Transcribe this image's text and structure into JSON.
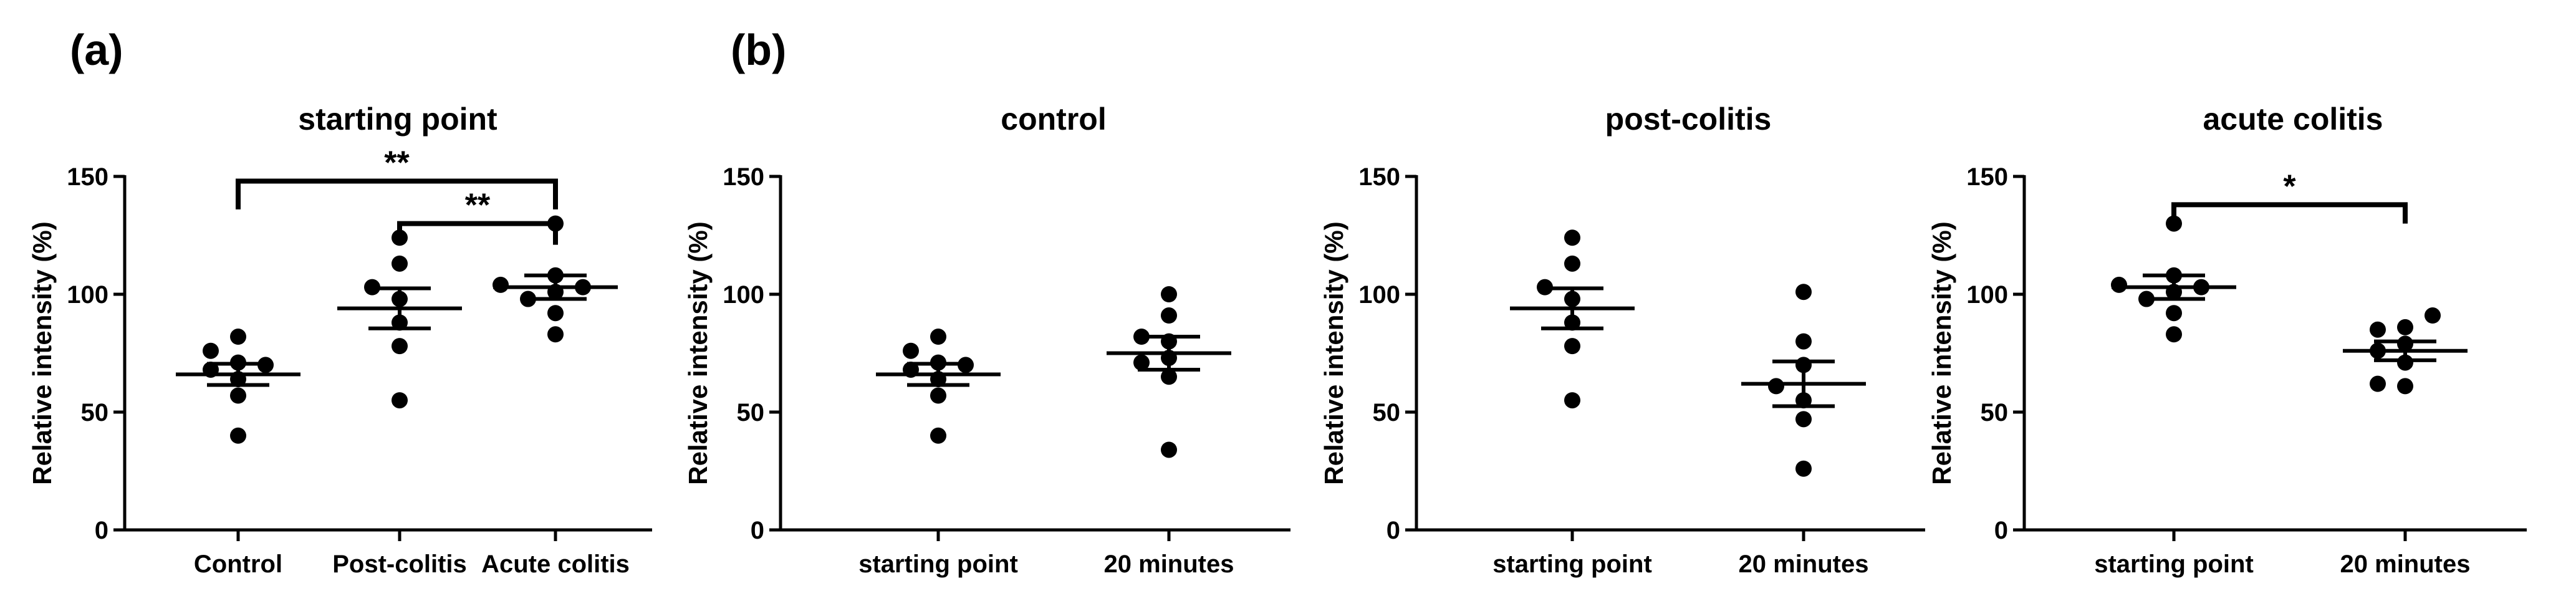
{
  "panel_labels": [
    "(a)",
    "(b)"
  ],
  "chart_data": [
    {
      "type": "scatter",
      "panel": "(a)",
      "title": "starting point",
      "ylabel": "Relative intensity (%)",
      "xlabel": "",
      "ylim": [
        0,
        150
      ],
      "yticks": [
        0,
        50,
        100,
        150
      ],
      "categories": [
        "Control",
        "Post-colitis",
        "Acute colitis"
      ],
      "groups": [
        {
          "name": "Control",
          "values": [
            40,
            57,
            64,
            68,
            70,
            71,
            76,
            82
          ],
          "mean": 66,
          "sem": 4.5
        },
        {
          "name": "Post-colitis",
          "values": [
            55,
            78,
            88,
            98,
            103,
            113,
            124
          ],
          "mean": 94,
          "sem": 8.5
        },
        {
          "name": "Acute colitis",
          "values": [
            83,
            92,
            98,
            101,
            103,
            104,
            108,
            130
          ],
          "mean": 103,
          "sem": 5
        }
      ],
      "significance": [
        {
          "from": 0,
          "to": 2,
          "label": "**"
        },
        {
          "from": 1,
          "to": 2,
          "label": "**"
        }
      ]
    },
    {
      "type": "scatter",
      "panel": "(b)",
      "title": "control",
      "ylabel": "Relative intensity (%)",
      "xlabel": "",
      "ylim": [
        0,
        150
      ],
      "yticks": [
        0,
        50,
        100,
        150
      ],
      "categories": [
        "starting point",
        "20 minutes"
      ],
      "groups": [
        {
          "name": "starting point",
          "values": [
            40,
            57,
            64,
            68,
            70,
            71,
            76,
            82
          ],
          "mean": 66,
          "sem": 4.5
        },
        {
          "name": "20 minutes",
          "values": [
            34,
            65,
            71,
            73,
            80,
            82,
            91,
            100
          ],
          "mean": 75,
          "sem": 7
        }
      ],
      "significance": []
    },
    {
      "type": "scatter",
      "panel": "(b)",
      "title": "post-colitis",
      "ylabel": "Relative intensity (%)",
      "xlabel": "",
      "ylim": [
        0,
        150
      ],
      "yticks": [
        0,
        50,
        100,
        150
      ],
      "categories": [
        "starting point",
        "20 minutes"
      ],
      "groups": [
        {
          "name": "starting point",
          "values": [
            55,
            78,
            88,
            98,
            103,
            113,
            124
          ],
          "mean": 94,
          "sem": 8.5
        },
        {
          "name": "20 minutes",
          "values": [
            26,
            47,
            55,
            61,
            70,
            80,
            101
          ],
          "mean": 62,
          "sem": 9.5
        }
      ],
      "significance": []
    },
    {
      "type": "scatter",
      "panel": "(b)",
      "title": "acute colitis",
      "ylabel": "Relative intensity (%)",
      "xlabel": "",
      "ylim": [
        0,
        150
      ],
      "yticks": [
        0,
        50,
        100,
        150
      ],
      "categories": [
        "starting point",
        "20 minutes"
      ],
      "groups": [
        {
          "name": "starting point",
          "values": [
            83,
            92,
            98,
            101,
            103,
            104,
            108,
            130
          ],
          "mean": 103,
          "sem": 5
        },
        {
          "name": "20 minutes",
          "values": [
            61,
            62,
            71,
            76,
            79,
            85,
            86,
            91
          ],
          "mean": 76,
          "sem": 4
        }
      ],
      "significance": [
        {
          "from": 0,
          "to": 1,
          "label": "*"
        }
      ]
    }
  ]
}
